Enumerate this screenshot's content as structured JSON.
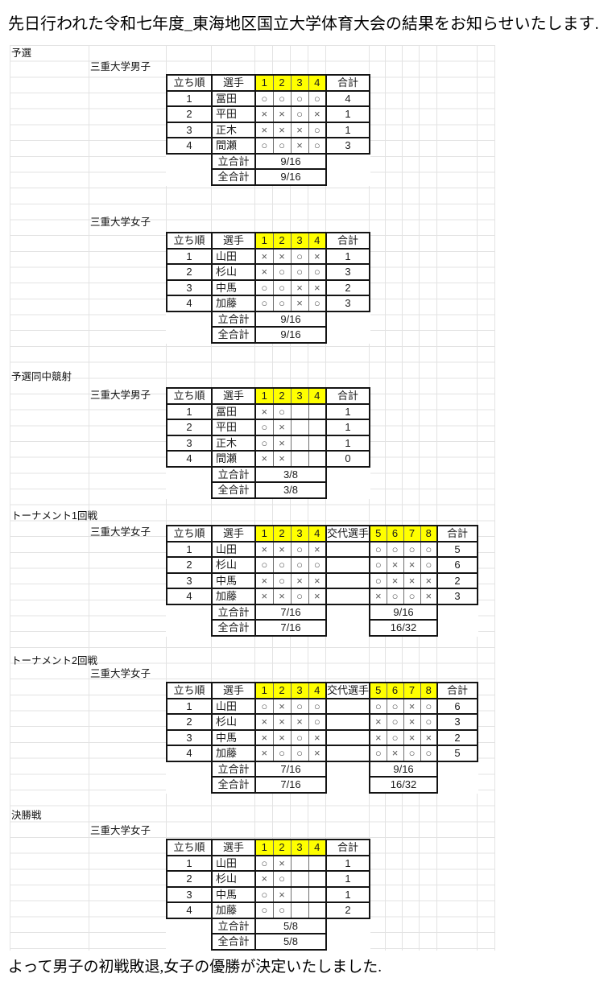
{
  "intro": "先日行われた令和七年度_東海地区国立大学体育大会の結果をお知らせいたします.",
  "outro": "よって男子の初戦敗退,女子の優勝が決定いたしました.",
  "colors": {
    "highlight_yellow": "#ffff00",
    "gridline": "#e3e3e3",
    "table_border": "#141414"
  },
  "marks_legend": {
    "hit": "○",
    "miss": "×"
  },
  "column_headers": {
    "order": "立ち順",
    "player": "選手",
    "substitute": "交代選手",
    "total": "合計"
  },
  "totals_labels": {
    "half": "立合計",
    "grand": "全合計"
  },
  "tables": [
    {
      "id": "prelim-men",
      "section_title": "予選",
      "team": "三重大学男子",
      "arrow_headers": [
        "1",
        "2",
        "3",
        "4"
      ],
      "rows": [
        {
          "order": "1",
          "player": "冨田",
          "marks": [
            "○",
            "○",
            "○",
            "○"
          ],
          "total": "4"
        },
        {
          "order": "2",
          "player": "平田",
          "marks": [
            "×",
            "×",
            "○",
            "×"
          ],
          "total": "1"
        },
        {
          "order": "3",
          "player": "正木",
          "marks": [
            "×",
            "×",
            "×",
            "○"
          ],
          "total": "1"
        },
        {
          "order": "4",
          "player": "間瀬",
          "marks": [
            "○",
            "○",
            "×",
            "○"
          ],
          "total": "3"
        }
      ],
      "half_totals": [
        "9/16"
      ],
      "grand_totals": [
        "9/16"
      ]
    },
    {
      "id": "prelim-women",
      "section_title": "",
      "team": "三重大学女子",
      "arrow_headers": [
        "1",
        "2",
        "3",
        "4"
      ],
      "rows": [
        {
          "order": "1",
          "player": "山田",
          "marks": [
            "×",
            "×",
            "○",
            "×"
          ],
          "total": "1"
        },
        {
          "order": "2",
          "player": "杉山",
          "marks": [
            "×",
            "○",
            "○",
            "○"
          ],
          "total": "3"
        },
        {
          "order": "3",
          "player": "中馬",
          "marks": [
            "○",
            "○",
            "×",
            "×"
          ],
          "total": "2"
        },
        {
          "order": "4",
          "player": "加藤",
          "marks": [
            "○",
            "○",
            "×",
            "○"
          ],
          "total": "3"
        }
      ],
      "half_totals": [
        "9/16"
      ],
      "grand_totals": [
        "9/16"
      ]
    },
    {
      "id": "tiebreak-men",
      "section_title": "予選同中競射",
      "team": "三重大学男子",
      "team_inline": true,
      "arrow_headers": [
        "1",
        "2",
        "3",
        "4"
      ],
      "rows": [
        {
          "order": "1",
          "player": "冨田",
          "marks": [
            "×",
            "○",
            "",
            ""
          ],
          "total": "1"
        },
        {
          "order": "2",
          "player": "平田",
          "marks": [
            "○",
            "×",
            "",
            ""
          ],
          "total": "1"
        },
        {
          "order": "3",
          "player": "正木",
          "marks": [
            "○",
            "×",
            "",
            ""
          ],
          "total": "1"
        },
        {
          "order": "4",
          "player": "間瀬",
          "marks": [
            "×",
            "×",
            "",
            ""
          ],
          "total": "0"
        }
      ],
      "half_totals": [
        "3/8"
      ],
      "grand_totals": [
        "3/8"
      ]
    },
    {
      "id": "tournament1-women",
      "section_title": "トーナメント1回戦",
      "team": "三重大学女子",
      "team_inline": true,
      "arrow_headers": [
        "1",
        "2",
        "3",
        "4"
      ],
      "arrow_headers2": [
        "5",
        "6",
        "7",
        "8"
      ],
      "rows": [
        {
          "order": "1",
          "player": "山田",
          "marks": [
            "×",
            "×",
            "○",
            "×"
          ],
          "substitute": "",
          "marks2": [
            "○",
            "○",
            "○",
            "○"
          ],
          "total": "5"
        },
        {
          "order": "2",
          "player": "杉山",
          "marks": [
            "○",
            "○",
            "○",
            "○"
          ],
          "substitute": "",
          "marks2": [
            "○",
            "×",
            "×",
            "○"
          ],
          "total": "6"
        },
        {
          "order": "3",
          "player": "中馬",
          "marks": [
            "×",
            "○",
            "×",
            "×"
          ],
          "substitute": "",
          "marks2": [
            "○",
            "×",
            "×",
            "×"
          ],
          "total": "2"
        },
        {
          "order": "4",
          "player": "加藤",
          "marks": [
            "×",
            "×",
            "○",
            "×"
          ],
          "substitute": "",
          "marks2": [
            "×",
            "○",
            "○",
            "×"
          ],
          "total": "3"
        }
      ],
      "half_totals": [
        "7/16",
        "9/16"
      ],
      "grand_totals": [
        "7/16",
        "16/32"
      ]
    },
    {
      "id": "tournament2-women",
      "section_title": "トーナメント2回戦",
      "team": "三重大学女子",
      "arrow_headers": [
        "1",
        "2",
        "3",
        "4"
      ],
      "arrow_headers2": [
        "5",
        "6",
        "7",
        "8"
      ],
      "rows": [
        {
          "order": "1",
          "player": "山田",
          "marks": [
            "○",
            "×",
            "○",
            "○"
          ],
          "substitute": "",
          "marks2": [
            "○",
            "○",
            "×",
            "○"
          ],
          "total": "6"
        },
        {
          "order": "2",
          "player": "杉山",
          "marks": [
            "×",
            "×",
            "×",
            "○"
          ],
          "substitute": "",
          "marks2": [
            "×",
            "○",
            "×",
            "○"
          ],
          "total": "3"
        },
        {
          "order": "3",
          "player": "中馬",
          "marks": [
            "×",
            "×",
            "○",
            "×"
          ],
          "substitute": "",
          "marks2": [
            "×",
            "○",
            "×",
            "×"
          ],
          "total": "2"
        },
        {
          "order": "4",
          "player": "加藤",
          "marks": [
            "×",
            "○",
            "○",
            "×"
          ],
          "substitute": "",
          "marks2": [
            "○",
            "×",
            "○",
            "○"
          ],
          "total": "5"
        }
      ],
      "half_totals": [
        "7/16",
        "9/16"
      ],
      "grand_totals": [
        "7/16",
        "16/32"
      ]
    },
    {
      "id": "final-women",
      "section_title": "決勝戦",
      "team": "三重大学女子",
      "arrow_headers": [
        "1",
        "2",
        "3",
        "4"
      ],
      "rows": [
        {
          "order": "1",
          "player": "山田",
          "marks": [
            "○",
            "×",
            "",
            ""
          ],
          "total": "1"
        },
        {
          "order": "2",
          "player": "杉山",
          "marks": [
            "×",
            "○",
            "",
            ""
          ],
          "total": "1"
        },
        {
          "order": "3",
          "player": "中馬",
          "marks": [
            "○",
            "×",
            "",
            ""
          ],
          "total": "1"
        },
        {
          "order": "4",
          "player": "加藤",
          "marks": [
            "○",
            "○",
            "",
            ""
          ],
          "total": "2"
        }
      ],
      "half_totals": [
        "5/8"
      ],
      "grand_totals": [
        "5/8"
      ]
    }
  ]
}
